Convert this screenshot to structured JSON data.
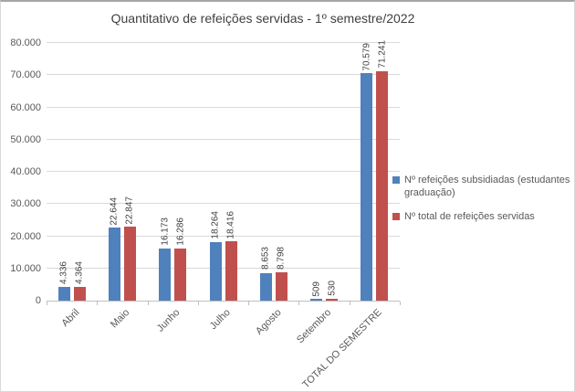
{
  "title": "Quantitativo de refeições servidas - 1º semestre/2022",
  "colors": {
    "series_subsidiadas": "#4F81BD",
    "series_total": "#C0504D",
    "gridline": "#D9D9D9",
    "axis_line": "#BFBFBF",
    "axis_text": "#595959",
    "data_label_text": "#404040",
    "title_text": "#404040"
  },
  "chart_data": {
    "type": "bar",
    "title": "Quantitativo de refeições servidas - 1º semestre/2022",
    "categories": [
      "Abril",
      "Maio",
      "Junho",
      "Julho",
      "Agosto",
      "Setembro",
      "TOTAL DO SEMESTRE"
    ],
    "series": [
      {
        "name": "Nº refeições subsidiadas (estudantes graduação)",
        "color": "#4F81BD",
        "values": [
          4336,
          22644,
          16173,
          18264,
          8653,
          509,
          70579
        ],
        "data_labels": [
          "4.336",
          "22.644",
          "16.173",
          "18.264",
          "8.653",
          "509",
          "70.579"
        ]
      },
      {
        "name": "Nº total de refeições servidas",
        "color": "#C0504D",
        "values": [
          4364,
          22847,
          16286,
          18416,
          8798,
          530,
          71241
        ],
        "data_labels": [
          "4.364",
          "22.847",
          "16.286",
          "18.416",
          "8.798",
          "530",
          "71.241"
        ]
      }
    ],
    "xlabel": "",
    "ylabel": "",
    "ylim": [
      0,
      80000
    ],
    "ytick_step": 10000,
    "ytick_labels": [
      "0",
      "10.000",
      "20.000",
      "30.000",
      "40.000",
      "50.000",
      "60.000",
      "70.000",
      "80.000"
    ],
    "grid": true,
    "legend_position": "right",
    "data_label_orientation": "vertical",
    "category_label_rotation_deg": -45
  }
}
